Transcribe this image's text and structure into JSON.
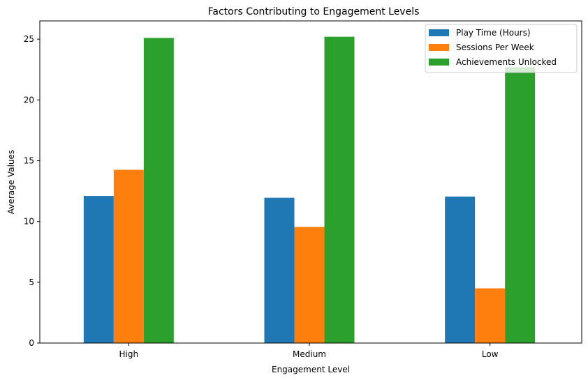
{
  "chart_data": {
    "type": "bar",
    "title": "Factors Contributing to Engagement Levels",
    "xlabel": "Engagement Level",
    "ylabel": "Average Values",
    "categories": [
      "High",
      "Medium",
      "Low"
    ],
    "series": [
      {
        "name": "Play Time (Hours)",
        "values": [
          12.1,
          11.95,
          12.05
        ],
        "color": "#1f77b4"
      },
      {
        "name": "Sessions Per Week",
        "values": [
          14.25,
          9.55,
          4.5
        ],
        "color": "#ff7f0e"
      },
      {
        "name": "Achievements Unlocked",
        "values": [
          25.1,
          25.2,
          22.7
        ],
        "color": "#2ca02c"
      }
    ],
    "ylim": [
      0,
      26.5
    ],
    "yticks": [
      0,
      5,
      10,
      15,
      20,
      25
    ],
    "grid": false,
    "legend_position": "top-right"
  }
}
